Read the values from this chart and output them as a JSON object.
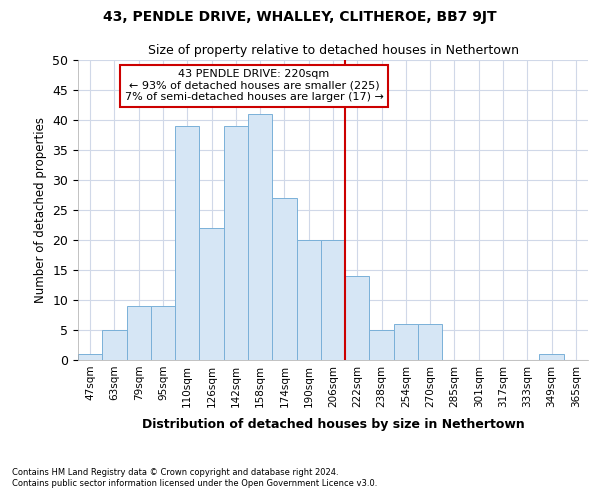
{
  "title": "43, PENDLE DRIVE, WHALLEY, CLITHEROE, BB7 9JT",
  "subtitle": "Size of property relative to detached houses in Nethertown",
  "xlabel_main": "Distribution of detached houses by size in Nethertown",
  "ylabel": "Number of detached properties",
  "footnote1": "Contains HM Land Registry data © Crown copyright and database right 2024.",
  "footnote2": "Contains public sector information licensed under the Open Government Licence v3.0.",
  "bar_labels": [
    "47sqm",
    "63sqm",
    "79sqm",
    "95sqm",
    "110sqm",
    "126sqm",
    "142sqm",
    "158sqm",
    "174sqm",
    "190sqm",
    "206sqm",
    "222sqm",
    "238sqm",
    "254sqm",
    "270sqm",
    "285sqm",
    "301sqm",
    "317sqm",
    "333sqm",
    "349sqm",
    "365sqm"
  ],
  "bar_values": [
    1,
    5,
    9,
    9,
    39,
    22,
    39,
    41,
    27,
    20,
    20,
    14,
    5,
    6,
    6,
    0,
    0,
    0,
    0,
    1,
    0
  ],
  "bar_color": "#d6e6f5",
  "bar_edge_color": "#7ab0d8",
  "background_color": "#ffffff",
  "grid_color": "#d0d8e8",
  "vline_color": "#cc0000",
  "annotation_line1": "43 PENDLE DRIVE: 220sqm",
  "annotation_line2": "← 93% of detached houses are smaller (225)",
  "annotation_line3": "7% of semi-detached houses are larger (17) →",
  "annotation_box_color": "#ffffff",
  "annotation_box_edge_color": "#cc0000",
  "ylim": [
    0,
    50
  ],
  "yticks": [
    0,
    5,
    10,
    15,
    20,
    25,
    30,
    35,
    40,
    45,
    50
  ],
  "vline_x_index": 11.0
}
